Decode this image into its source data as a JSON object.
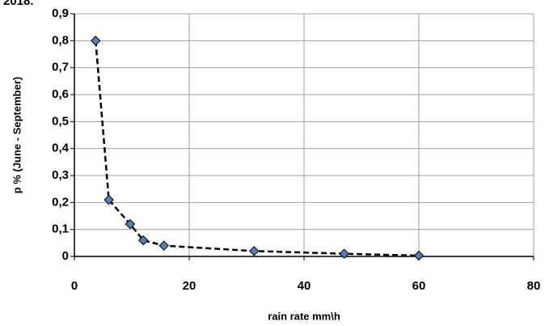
{
  "caption_fragment": "2018.",
  "chart_data": {
    "type": "line",
    "x_label": "rain rate  mm\\h",
    "y_label": "p % (June - September)",
    "series": [
      {
        "name": "p",
        "color": "#4f81bd",
        "x": [
          3.7,
          6,
          9.7,
          12,
          15.6,
          31.3,
          47,
          60
        ],
        "values": [
          0.8,
          0.21,
          0.12,
          0.06,
          0.04,
          0.02,
          0.01,
          0.003
        ]
      }
    ],
    "xlim": [
      0,
      80
    ],
    "xticks": [
      0,
      20,
      40,
      60,
      80
    ],
    "ylim": [
      0,
      0.9
    ],
    "yticks": [
      {
        "value": 0,
        "label": "0"
      },
      {
        "value": 0.1,
        "label": "0,1"
      },
      {
        "value": 0.2,
        "label": "0,2"
      },
      {
        "value": 0.3,
        "label": "0,3"
      },
      {
        "value": 0.4,
        "label": "0,4"
      },
      {
        "value": 0.5,
        "label": "0,5"
      },
      {
        "value": 0.6,
        "label": "0,6"
      },
      {
        "value": 0.7,
        "label": "0,7"
      },
      {
        "value": 0.8,
        "label": "0,8"
      },
      {
        "value": 0.9,
        "label": "0,9"
      }
    ],
    "grid": true,
    "line_style": "dashed"
  }
}
